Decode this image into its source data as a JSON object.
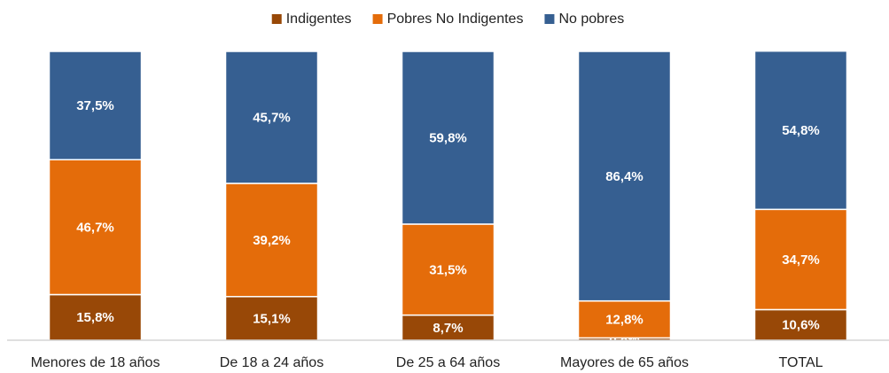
{
  "chart_data": {
    "type": "stacked_bar",
    "categories": [
      "Menores de 18 años",
      "De 18 a 24 años",
      "De 25 a 64 años",
      "Mayores de 65 años",
      "TOTAL"
    ],
    "series": [
      {
        "name": "Indigentes",
        "color": "#984807",
        "values": [
          15.8,
          15.1,
          8.7,
          0.8,
          10.6
        ],
        "value_labels": [
          "15,8%",
          "15,1%",
          "8,7%",
          "0,8%",
          "10,6%"
        ]
      },
      {
        "name": "Pobres No Indigentes",
        "color": "#e46c0a",
        "values": [
          46.7,
          39.2,
          31.5,
          12.8,
          34.7
        ],
        "value_labels": [
          "46,7%",
          "39,2%",
          "31,5%",
          "12,8%",
          "34,7%"
        ]
      },
      {
        "name": "No pobres",
        "color": "#365f91",
        "values": [
          37.5,
          45.7,
          59.8,
          86.4,
          54.8
        ],
        "value_labels": [
          "37,5%",
          "45,7%",
          "59,8%",
          "86,4%",
          "54,8%"
        ]
      }
    ],
    "ylim": [
      0,
      100
    ],
    "legend": "top"
  }
}
